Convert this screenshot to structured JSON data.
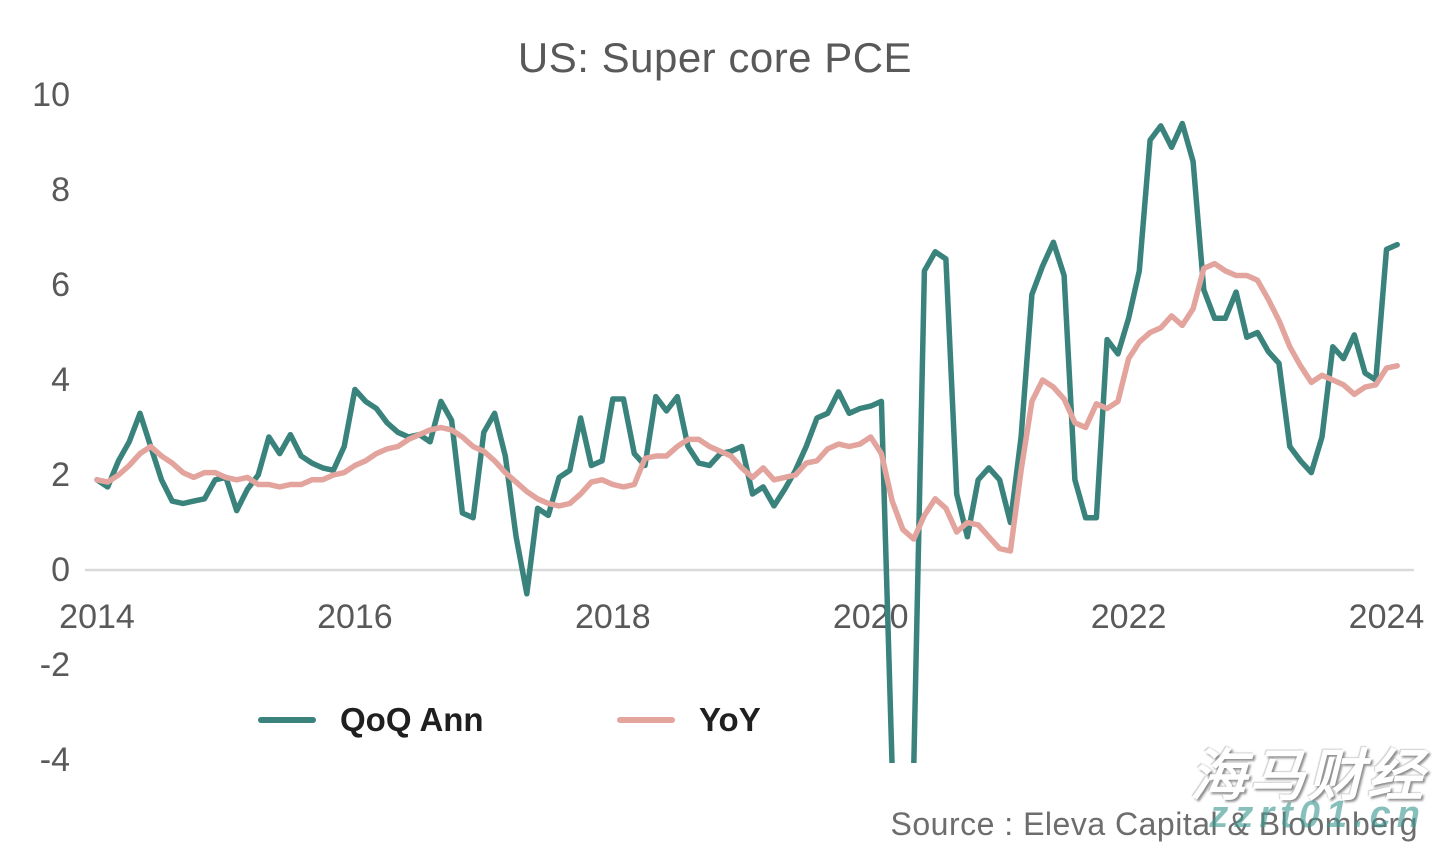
{
  "title": "US: Super core PCE",
  "source": "Source : Eleva Capital & Bloomberg",
  "watermark": {
    "cjk_text": "海马财经",
    "latin_text": "zzrt01.cn"
  },
  "legend": [
    {
      "label": "QoQ Ann",
      "color": "#3A837D"
    },
    {
      "label": "YoY",
      "color": "#E2A49D"
    }
  ],
  "colors": {
    "qoq_line": "#3A837D",
    "yoy_line": "#E2A49D",
    "axis_text": "#595959",
    "zero_line": "#D9D9D9",
    "title_text": "#595959",
    "source_text": "#6D6D6D"
  },
  "chart_data": {
    "type": "line",
    "title": "US: Super core PCE",
    "x_start_year": 2014,
    "points_per_year": 12,
    "x_ticks": [
      2014,
      2016,
      2018,
      2020,
      2022,
      2024
    ],
    "y_ticks": [
      10,
      8,
      6,
      4,
      2,
      0,
      -2,
      -4
    ],
    "ylim": [
      -4.17,
      10.2
    ],
    "grid": "zero-line-only",
    "legend_position": "bottom",
    "series": [
      {
        "name": "QoQ Ann",
        "color": "#3A837D",
        "values": [
          1.9,
          1.75,
          2.3,
          2.7,
          3.3,
          2.6,
          1.9,
          1.45,
          1.4,
          1.45,
          1.5,
          1.9,
          1.95,
          1.25,
          1.7,
          2.0,
          2.8,
          2.45,
          2.85,
          2.4,
          2.25,
          2.15,
          2.1,
          2.6,
          3.8,
          3.55,
          3.4,
          3.1,
          2.9,
          2.8,
          2.85,
          2.7,
          3.55,
          3.15,
          1.2,
          1.1,
          2.9,
          3.3,
          2.4,
          0.7,
          -0.5,
          1.3,
          1.15,
          1.95,
          2.1,
          3.2,
          2.2,
          2.3,
          3.6,
          3.6,
          2.45,
          2.2,
          3.65,
          3.35,
          3.65,
          2.6,
          2.25,
          2.2,
          2.45,
          2.5,
          2.6,
          1.6,
          1.75,
          1.35,
          1.7,
          2.1,
          2.6,
          3.2,
          3.3,
          3.75,
          3.3,
          3.4,
          3.45,
          3.55,
          -4.2,
          -4.3,
          -4.2,
          6.3,
          6.7,
          6.55,
          1.6,
          0.7,
          1.9,
          2.15,
          1.9,
          1.0,
          2.8,
          5.8,
          6.4,
          6.9,
          6.2,
          1.9,
          1.1,
          1.1,
          4.85,
          4.55,
          5.3,
          6.3,
          9.05,
          9.35,
          8.9,
          9.4,
          8.6,
          5.9,
          5.3,
          5.3,
          5.85,
          4.9,
          5.0,
          4.6,
          4.35,
          2.6,
          2.3,
          2.05,
          2.8,
          4.7,
          4.45,
          4.95,
          4.15,
          4.0,
          6.75,
          6.85
        ]
      },
      {
        "name": "YoY",
        "color": "#E2A49D",
        "values": [
          1.9,
          1.85,
          2.0,
          2.2,
          2.45,
          2.6,
          2.4,
          2.25,
          2.05,
          1.95,
          2.05,
          2.05,
          1.95,
          1.9,
          1.95,
          1.8,
          1.8,
          1.75,
          1.8,
          1.8,
          1.9,
          1.9,
          2.0,
          2.05,
          2.2,
          2.3,
          2.45,
          2.55,
          2.6,
          2.75,
          2.85,
          2.95,
          3.0,
          2.95,
          2.8,
          2.6,
          2.5,
          2.3,
          2.05,
          1.85,
          1.65,
          1.5,
          1.4,
          1.35,
          1.4,
          1.6,
          1.85,
          1.9,
          1.8,
          1.75,
          1.8,
          2.35,
          2.4,
          2.4,
          2.6,
          2.75,
          2.75,
          2.6,
          2.5,
          2.4,
          2.15,
          1.95,
          2.15,
          1.9,
          1.95,
          2.0,
          2.25,
          2.3,
          2.55,
          2.65,
          2.6,
          2.65,
          2.8,
          2.45,
          1.45,
          0.85,
          0.65,
          1.15,
          1.5,
          1.3,
          0.8,
          1.0,
          0.95,
          0.7,
          0.45,
          0.4,
          2.1,
          3.55,
          4.0,
          3.85,
          3.6,
          3.1,
          3.0,
          3.5,
          3.4,
          3.55,
          4.45,
          4.8,
          5.0,
          5.1,
          5.35,
          5.15,
          5.5,
          6.35,
          6.45,
          6.3,
          6.2,
          6.2,
          6.1,
          5.7,
          5.25,
          4.7,
          4.3,
          3.95,
          4.1,
          4.0,
          3.9,
          3.7,
          3.85,
          3.9,
          4.25,
          4.3
        ]
      }
    ]
  }
}
